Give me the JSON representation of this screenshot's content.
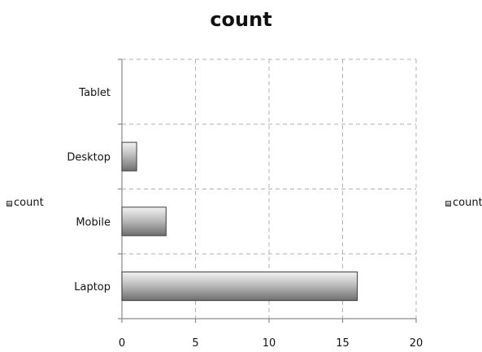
{
  "chart_data": {
    "type": "bar",
    "orientation": "horizontal",
    "title": "count",
    "xlabel": "",
    "ylabel": "",
    "categories": [
      "Laptop",
      "Mobile",
      "Desktop",
      "Tablet"
    ],
    "series": [
      {
        "name": "count",
        "values": [
          16,
          3,
          1,
          0
        ]
      }
    ],
    "xlim": [
      0,
      20
    ],
    "xticks": [
      0,
      5,
      10,
      15,
      20
    ],
    "grid": true,
    "legend": [
      "left",
      "right"
    ],
    "colors": {
      "bar_light": "#e6e6e6",
      "bar_dark": "#6f6f6f",
      "grid": "#b0b0b0",
      "axis": "#8a8a8a"
    }
  },
  "legend": {
    "left_label": "count",
    "right_label": "count"
  }
}
